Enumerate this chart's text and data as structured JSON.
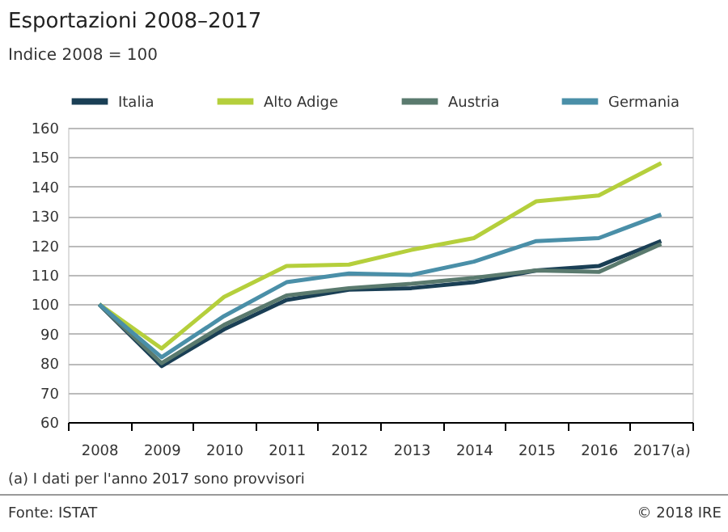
{
  "chart_data": {
    "type": "line",
    "title": "Esportazioni 2008–2017",
    "subtitle": "Indice 2008 = 100",
    "categories": [
      "2008",
      "2009",
      "2010",
      "2011",
      "2012",
      "2013",
      "2014",
      "2015",
      "2016",
      "2017(a)"
    ],
    "series": [
      {
        "name": "Italia",
        "color": "#1a3f55",
        "values": [
          100,
          79,
          91.5,
          101.5,
          105,
          105.5,
          107.5,
          111.5,
          113,
          121.5
        ]
      },
      {
        "name": "Alto Adige",
        "color": "#b5cf3c",
        "values": [
          100,
          85,
          102.5,
          113,
          113.5,
          118.5,
          122.5,
          135,
          137,
          148
        ]
      },
      {
        "name": "Austria",
        "color": "#5a7a6e",
        "values": [
          100,
          80,
          93,
          103,
          105.5,
          107,
          109,
          111.5,
          111,
          120.5
        ]
      },
      {
        "name": "Germania",
        "color": "#4a8fa8",
        "values": [
          100,
          82,
          96,
          107.5,
          110.5,
          110,
          114.5,
          121.5,
          122.5,
          130.5
        ]
      }
    ],
    "ylim": [
      60,
      160
    ],
    "yticks": [
      60,
      70,
      80,
      90,
      100,
      110,
      120,
      130,
      140,
      150,
      160
    ],
    "grid": "y",
    "legend": "top",
    "marker": "none",
    "line_style": "solid",
    "annotations": [
      "(a)  I dati per l'anno 2017 sono provvisori",
      "Fonte: ISTAT",
      "© 2018 IRE"
    ]
  }
}
